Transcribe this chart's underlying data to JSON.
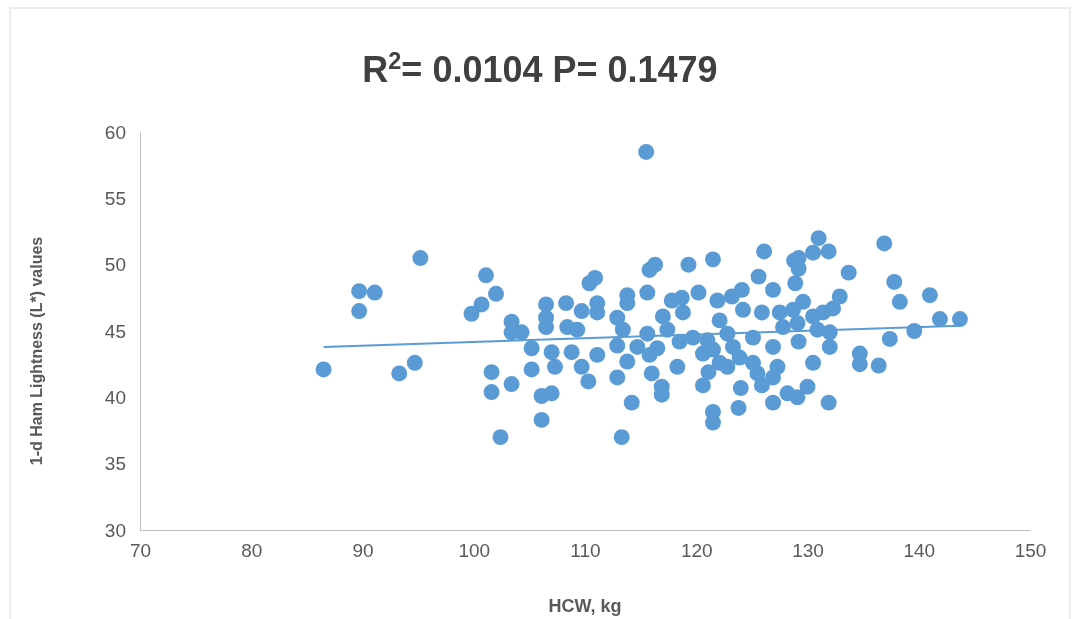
{
  "chart_data": {
    "type": "scatter",
    "title": "R$^{2}$= 0.0104 P= 0.1479",
    "xlabel": "HCW, kg",
    "ylabel": "1-d Ham Lightness (L*) values",
    "xlim": [
      70,
      150
    ],
    "xticks": [
      70,
      80,
      90,
      100,
      110,
      120,
      130,
      140,
      150
    ],
    "ylim": [
      30,
      60
    ],
    "yticks": [
      30,
      35,
      40,
      45,
      50,
      55,
      60
    ],
    "marker": "circle",
    "series": [
      {
        "color": "#5b9bd5",
        "x": [
          95.2,
          89.7,
          91.1,
          89.7,
          86.5,
          93.3,
          94.7,
          101.1,
          102.0,
          100.7,
          99.8,
          103.4,
          103.4,
          104.3,
          106.5,
          106.5,
          106.5,
          105.2,
          107.0,
          105.2,
          107.3,
          101.6,
          101.6,
          103.4,
          106.1,
          107.0,
          106.1,
          102.4,
          126.1,
          121.5,
          119.3,
          116.3,
          115.8,
          110.9,
          110.4,
          125.6,
          128.8,
          113.8,
          115.6,
          120.2,
          124.1,
          126.9,
          108.3,
          109.7,
          111.1,
          111.1,
          113.8,
          112.9,
          117.8,
          118.7,
          121.9,
          123.2,
          124.2,
          117.0,
          118.8,
          122.1,
          125.9,
          127.5,
          127.8,
          108.4,
          109.3,
          113.4,
          115.6,
          117.4,
          119.7,
          121.0,
          122.8,
          125.1,
          112.9,
          114.7,
          116.5,
          118.5,
          121.5,
          123.3,
          123.9,
          126.9,
          108.8,
          111.1,
          113.8,
          115.8,
          120.6,
          122.1,
          125.1,
          127.3,
          109.7,
          112.9,
          116.0,
          118.3,
          121.1,
          122.8,
          125.5,
          126.9,
          110.3,
          120.6,
          124.0,
          125.9,
          128.2,
          116.9,
          116.9,
          114.2,
          126.9,
          123.8,
          121.5,
          121.5,
          113.3,
          131.0,
          130.5,
          131.9,
          129.2,
          129.2,
          128.9,
          136.9,
          133.7,
          137.8,
          141.0,
          138.3,
          132.9,
          132.3,
          129.6,
          128.7,
          130.5,
          131.4,
          129.1,
          130.9,
          132.0,
          141.9,
          143.7,
          139.6,
          137.4,
          129.2,
          132.0,
          134.7,
          134.7,
          136.4,
          130.5,
          130.0,
          129.1,
          131.9,
          115.5
        ],
        "values": [
          50.5,
          48.0,
          47.9,
          46.5,
          42.1,
          41.8,
          42.6,
          49.2,
          47.8,
          47.0,
          46.3,
          45.7,
          44.9,
          44.9,
          47.0,
          46.0,
          45.3,
          43.7,
          43.4,
          42.1,
          42.3,
          41.9,
          40.4,
          41.0,
          40.1,
          40.3,
          38.3,
          37.0,
          51.0,
          50.4,
          50.0,
          50.0,
          49.6,
          49.0,
          48.6,
          49.1,
          50.3,
          47.7,
          47.9,
          47.9,
          48.1,
          48.1,
          47.1,
          46.5,
          47.1,
          46.4,
          47.1,
          46.0,
          47.3,
          47.5,
          47.3,
          47.6,
          46.6,
          46.1,
          46.4,
          45.8,
          46.4,
          46.4,
          45.3,
          45.3,
          45.1,
          45.1,
          44.8,
          45.1,
          44.5,
          44.3,
          44.8,
          44.5,
          43.9,
          43.8,
          43.7,
          44.2,
          43.6,
          43.8,
          43.0,
          43.8,
          43.4,
          43.2,
          42.7,
          43.2,
          43.3,
          42.6,
          42.6,
          42.3,
          42.3,
          41.5,
          41.8,
          42.3,
          41.9,
          42.3,
          41.8,
          41.5,
          41.2,
          40.9,
          40.7,
          40.9,
          40.3,
          40.8,
          40.2,
          39.6,
          39.6,
          39.2,
          38.9,
          38.1,
          37.0,
          52.0,
          50.9,
          51.0,
          50.5,
          49.7,
          48.6,
          51.6,
          49.4,
          48.7,
          47.7,
          47.2,
          47.6,
          46.7,
          47.2,
          46.6,
          46.1,
          46.4,
          45.6,
          45.1,
          44.9,
          45.9,
          45.9,
          45.0,
          44.4,
          44.2,
          43.8,
          43.3,
          42.5,
          42.4,
          42.6,
          40.8,
          40.0,
          39.6,
          58.5
        ]
      },
      {
        "type": "line",
        "color": "#5b9bd5",
        "marker": "none",
        "x": [
          86.5,
          143.7
        ],
        "values": [
          43.8,
          45.4
        ]
      }
    ]
  }
}
